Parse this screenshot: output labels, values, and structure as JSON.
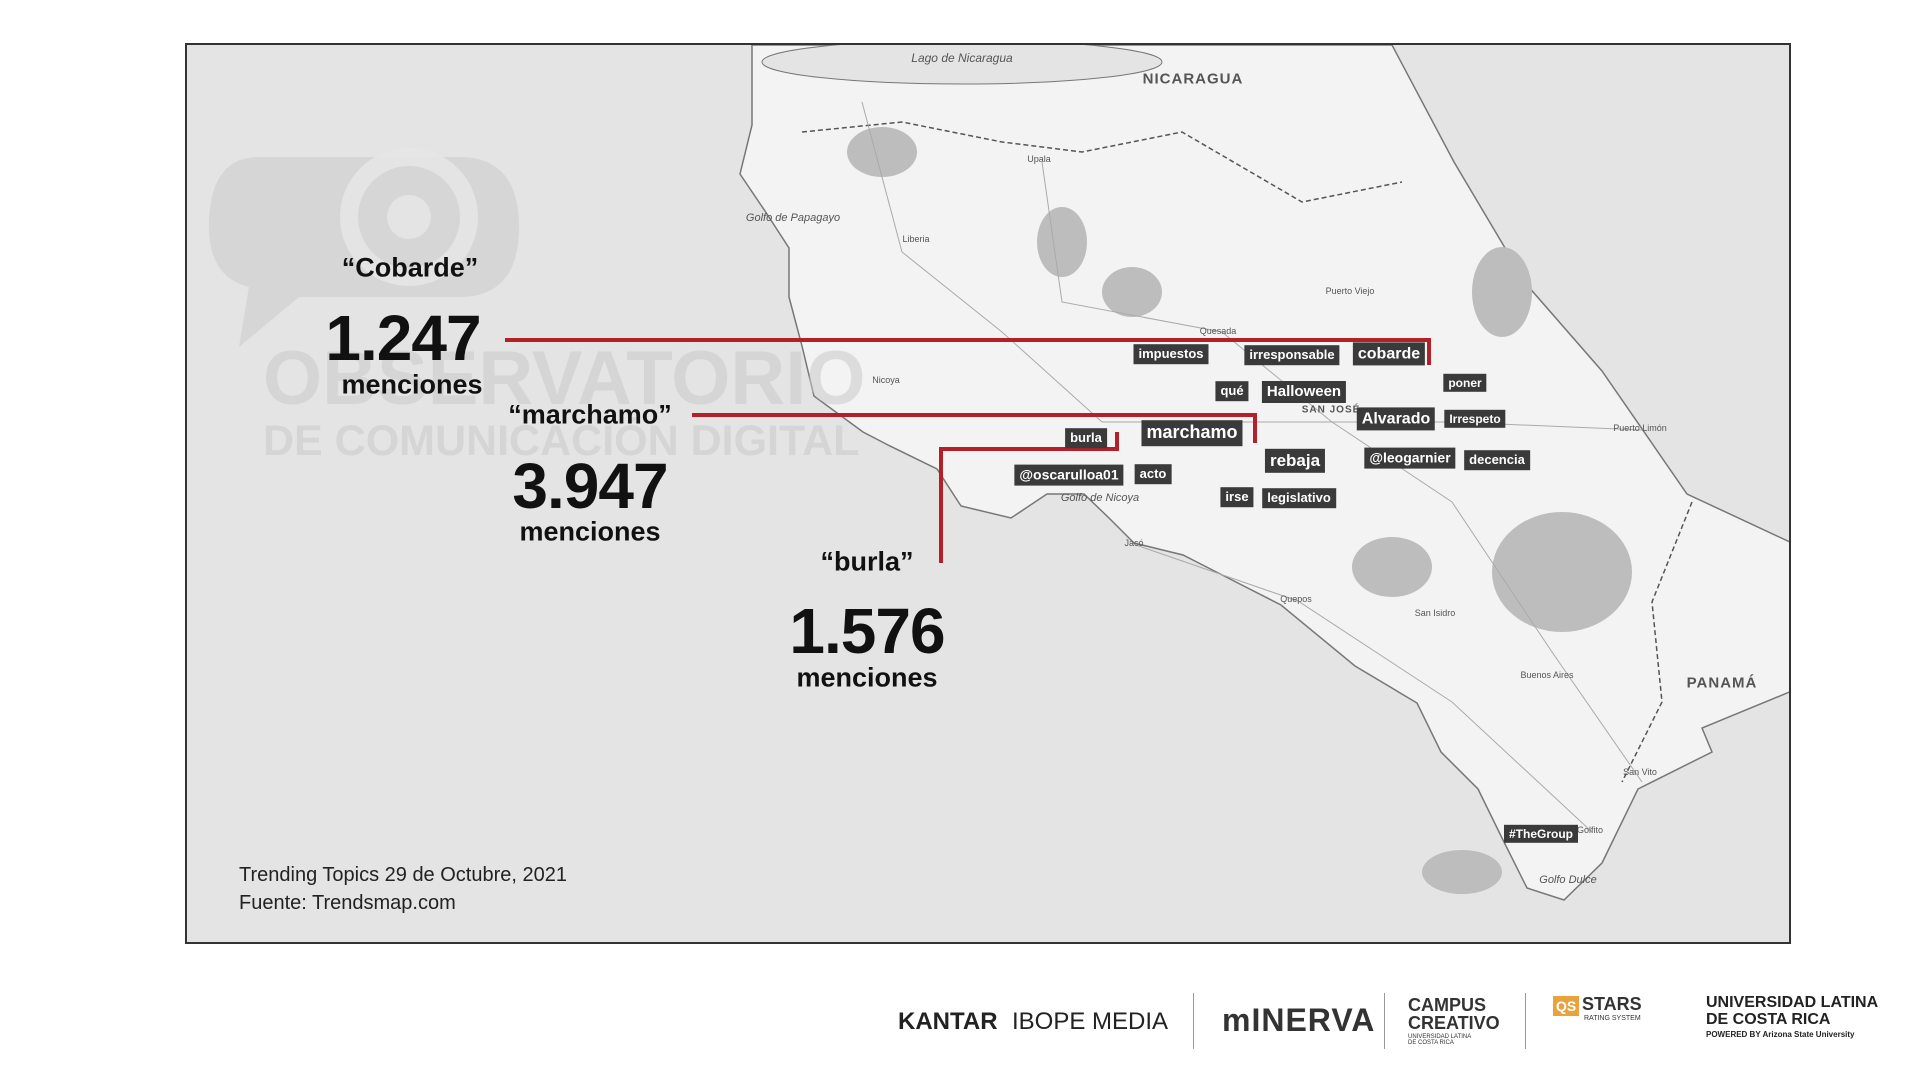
{
  "watermark": {
    "line1": "OBSERVATORIO",
    "line2": "DE COMUNICACIÓN DIGITAL"
  },
  "callouts": [
    {
      "term": "“Cobarde”",
      "count": "1.247",
      "unit": "menciones"
    },
    {
      "term": "“marchamo”",
      "count": "3.947",
      "unit": "menciones"
    },
    {
      "term": "“burla”",
      "count": "1.576",
      "unit": "menciones"
    }
  ],
  "map_labels": [
    "Lago de Nicaragua",
    "NICARAGUA",
    "PANAMÁ",
    "Golfo de Papagayo",
    "Golfo de Nicoya",
    "Golfo Dulce",
    "SAN JOSÉ",
    "Liberia",
    "Puerto Limón",
    "Quepos",
    "San Isidro",
    "Jacó",
    "Upala",
    "Quesada",
    "Puerto Viejo",
    "Nicoya",
    "Golfito",
    "Buenos Aires",
    "San Vito"
  ],
  "tags": [
    "impuestos",
    "irresponsable",
    "cobarde",
    "poner",
    "qué",
    "Halloween",
    "Alvarado",
    "Irrespeto",
    "burla",
    "marchamo",
    "rebaja",
    "@leogarnier",
    "decencia",
    "@oscarulloa01",
    "acto",
    "irse",
    "legislativo",
    "#TheGroup"
  ],
  "caption": {
    "date": "Trending Topics 29 de Octubre, 2021",
    "source": "Fuente: Trendsmap.com"
  },
  "logos": {
    "kantar": "KANTAR",
    "ibope": "IBOPE MEDIA",
    "minerva": "mINERVA",
    "campus": "CAMPUS CREATIVO",
    "campus_sub": "UNIVERSIDAD LATINA DE COSTA RICA",
    "qs": "QS",
    "stars": "STARS",
    "stars_sub": "RATING SYSTEM",
    "ulatina": "UNIVERSIDAD LATINA",
    "ulatina2": "DE COSTA RICA",
    "asu": "POWERED BY Arizona State University"
  }
}
